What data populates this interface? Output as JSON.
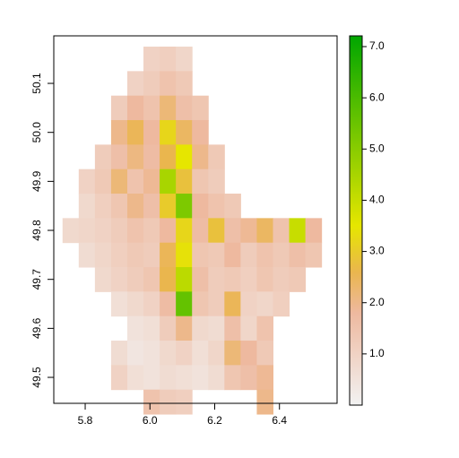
{
  "chart_data": {
    "type": "raster",
    "xlim": [
      5.703,
      6.578
    ],
    "ylim": [
      49.447,
      50.197
    ],
    "xticks": [
      5.8,
      {
        "value": 6,
        "label": "6.0"
      },
      6.2,
      6.4
    ],
    "yticks": [
      49.5,
      49.6,
      49.7,
      49.8,
      49.9,
      {
        "value": 50,
        "label": "50.0"
      },
      50.1
    ],
    "lon0": 5.73,
    "lat0": 50.175,
    "cell": 0.05,
    "z": [
      [
        null,
        null,
        null,
        null,
        null,
        1.0,
        1.1,
        0.9,
        null,
        null,
        null,
        null,
        null,
        null,
        null,
        null
      ],
      [
        null,
        null,
        null,
        null,
        1.0,
        1.2,
        1.5,
        1.3,
        null,
        null,
        null,
        null,
        null,
        null,
        null,
        null
      ],
      [
        null,
        null,
        null,
        1.2,
        1.8,
        1.5,
        2.2,
        1.6,
        1.4,
        null,
        null,
        null,
        null,
        null,
        null,
        null
      ],
      [
        null,
        null,
        null,
        2.0,
        2.5,
        1.8,
        3.2,
        2.4,
        1.8,
        null,
        null,
        null,
        null,
        null,
        null,
        null
      ],
      [
        null,
        null,
        1.2,
        1.6,
        2.1,
        1.7,
        2.6,
        3.5,
        2.0,
        1.3,
        null,
        null,
        null,
        null,
        null,
        null
      ],
      [
        null,
        1.0,
        1.3,
        2.2,
        1.5,
        1.9,
        4.5,
        2.8,
        1.4,
        1.2,
        null,
        null,
        null,
        null,
        null,
        null
      ],
      [
        null,
        0.8,
        1.1,
        1.4,
        2.0,
        1.6,
        3.0,
        5.2,
        1.8,
        1.5,
        1.3,
        null,
        null,
        null,
        null,
        null
      ],
      [
        0.8,
        0.9,
        1.0,
        1.2,
        1.5,
        1.3,
        1.8,
        3.2,
        1.7,
        2.8,
        1.6,
        1.9,
        2.4,
        1.5,
        4.0,
        1.8
      ],
      [
        null,
        0.7,
        0.9,
        1.1,
        1.3,
        1.2,
        2.5,
        3.4,
        1.4,
        1.3,
        1.8,
        1.2,
        1.5,
        1.3,
        1.6,
        1.4
      ],
      [
        null,
        null,
        0.8,
        1.0,
        1.2,
        1.4,
        2.6,
        4.2,
        1.6,
        1.2,
        1.3,
        1.1,
        1.4,
        1.2,
        1.3,
        null
      ],
      [
        null,
        null,
        null,
        0.6,
        0.8,
        1.0,
        1.7,
        5.6,
        1.4,
        1.2,
        2.5,
        1.0,
        0.9,
        1.1,
        null,
        null
      ],
      [
        null,
        null,
        null,
        null,
        0.5,
        0.6,
        1.2,
        2.0,
        0.8,
        0.7,
        1.6,
        0.9,
        1.5,
        null,
        null,
        null
      ],
      [
        null,
        null,
        null,
        0.7,
        0.4,
        0.5,
        0.8,
        1.0,
        0.6,
        0.9,
        2.2,
        1.8,
        1.3,
        null,
        null,
        null
      ],
      [
        null,
        null,
        null,
        1.0,
        0.6,
        0.5,
        0.7,
        0.6,
        0.5,
        0.7,
        1.4,
        1.6,
        1.9,
        null,
        null,
        null
      ],
      [
        null,
        null,
        null,
        null,
        null,
        1.5,
        1.2,
        1.1,
        null,
        null,
        null,
        null,
        2.0,
        null,
        null,
        null
      ]
    ],
    "clim": [
      0,
      7.21
    ],
    "cticks": [
      {
        "value": 1,
        "label": "1.0"
      },
      {
        "value": 2,
        "label": "2.0"
      },
      {
        "value": 3,
        "label": "3.0"
      },
      {
        "value": 4,
        "label": "4.0"
      },
      {
        "value": 5,
        "label": "5.0"
      },
      {
        "value": 6,
        "label": "6.0"
      },
      {
        "value": 7,
        "label": "7.0"
      }
    ],
    "colorscale": [
      [
        0,
        "#f2f2f2"
      ],
      [
        1.8,
        "#eeb99f"
      ],
      [
        2.6,
        "#eab64e"
      ],
      [
        3.5,
        "#e6e600"
      ],
      [
        7.21,
        "#00a600"
      ]
    ]
  }
}
